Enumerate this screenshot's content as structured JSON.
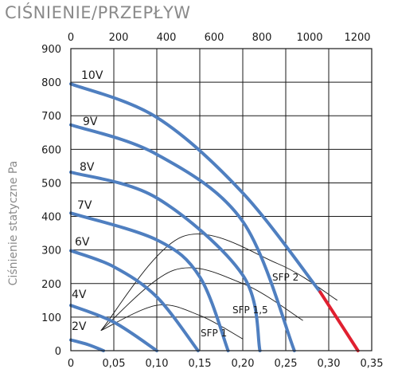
{
  "title": "CIŚNIENIE/PRZEPŁYW",
  "chart_data": {
    "type": "line",
    "title": "CIŚNIENIE/PRZEPŁYW",
    "ylabel": "Ciśnienie statyczne Pa",
    "x_bottom": {
      "range": [
        0,
        0.35
      ],
      "ticks": [
        "0",
        "0,05",
        "0,10",
        "0,15",
        "0,20",
        "0,25",
        "0,30",
        "0,35"
      ]
    },
    "x_top": {
      "range": [
        0,
        1260
      ],
      "ticks": [
        "0",
        "200",
        "400",
        "600",
        "800",
        "1000",
        "1200"
      ]
    },
    "y": {
      "range": [
        0,
        900
      ],
      "ticks": [
        "0",
        "100",
        "200",
        "300",
        "400",
        "500",
        "600",
        "700",
        "800",
        "900"
      ]
    },
    "grid": true,
    "series": [
      {
        "name": "10V",
        "color": "#4f7fc0",
        "x": [
          0,
          0.1,
          0.2,
          0.29
        ],
        "y": [
          795,
          695,
          470,
          175
        ]
      },
      {
        "name": "9V",
        "color": "#4f7fc0",
        "x": [
          0,
          0.1,
          0.2,
          0.26
        ],
        "y": [
          673,
          585,
          385,
          0
        ]
      },
      {
        "name": "8V",
        "color": "#4f7fc0",
        "x": [
          0,
          0.1,
          0.2,
          0.22
        ],
        "y": [
          532,
          455,
          225,
          0
        ]
      },
      {
        "name": "7V",
        "color": "#4f7fc0",
        "x": [
          0,
          0.1,
          0.15,
          0.183
        ],
        "y": [
          410,
          330,
          220,
          0
        ]
      },
      {
        "name": "6V",
        "color": "#4f7fc0",
        "x": [
          0,
          0.05,
          0.1,
          0.148
        ],
        "y": [
          298,
          250,
          160,
          0
        ]
      },
      {
        "name": "4V",
        "color": "#4f7fc0",
        "x": [
          0,
          0.05,
          0.1
        ],
        "y": [
          135,
          85,
          0
        ]
      },
      {
        "name": "2V",
        "color": "#4f7fc0",
        "x": [
          0,
          0.02,
          0.038
        ],
        "y": [
          32,
          18,
          0
        ]
      }
    ],
    "extension": {
      "color": "#e02030",
      "x": [
        0.29,
        0.334
      ],
      "y": [
        175,
        0
      ]
    },
    "sfp_curves": [
      {
        "name": "SFP 2",
        "x": [
          0.035,
          0.13,
          0.24,
          0.31
        ],
        "y": [
          60,
          340,
          260,
          150
        ]
      },
      {
        "name": "SFP 1,5",
        "x": [
          0.035,
          0.12,
          0.2,
          0.27
        ],
        "y": [
          60,
          240,
          200,
          90
        ]
      },
      {
        "name": "SFP 1",
        "x": [
          0.035,
          0.1,
          0.15,
          0.2
        ],
        "y": [
          60,
          135,
          105,
          35
        ]
      }
    ]
  }
}
